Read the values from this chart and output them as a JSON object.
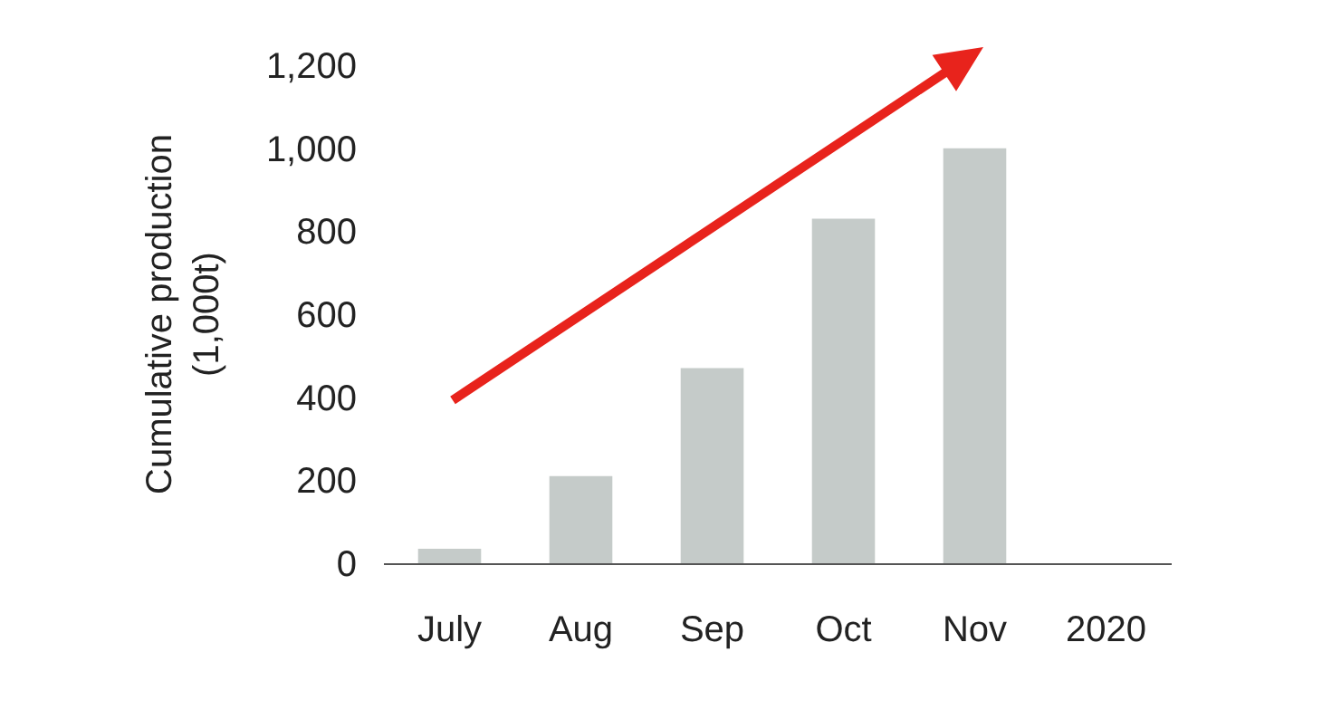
{
  "chart_data": {
    "type": "bar",
    "ylabel": "Cumulative production\n(1,000t)",
    "categories": [
      "July",
      "Aug",
      "Sep",
      "Oct",
      "Nov",
      "2020"
    ],
    "values": [
      35,
      210,
      470,
      830,
      1000,
      null
    ],
    "color": "#c5cbc9",
    "ylim": [
      0,
      1200
    ],
    "yticks": [
      0,
      200,
      400,
      600,
      800,
      {
        "value": 1000,
        "label": "1,000"
      },
      {
        "value": 1200,
        "label": "1,200"
      }
    ]
  }
}
